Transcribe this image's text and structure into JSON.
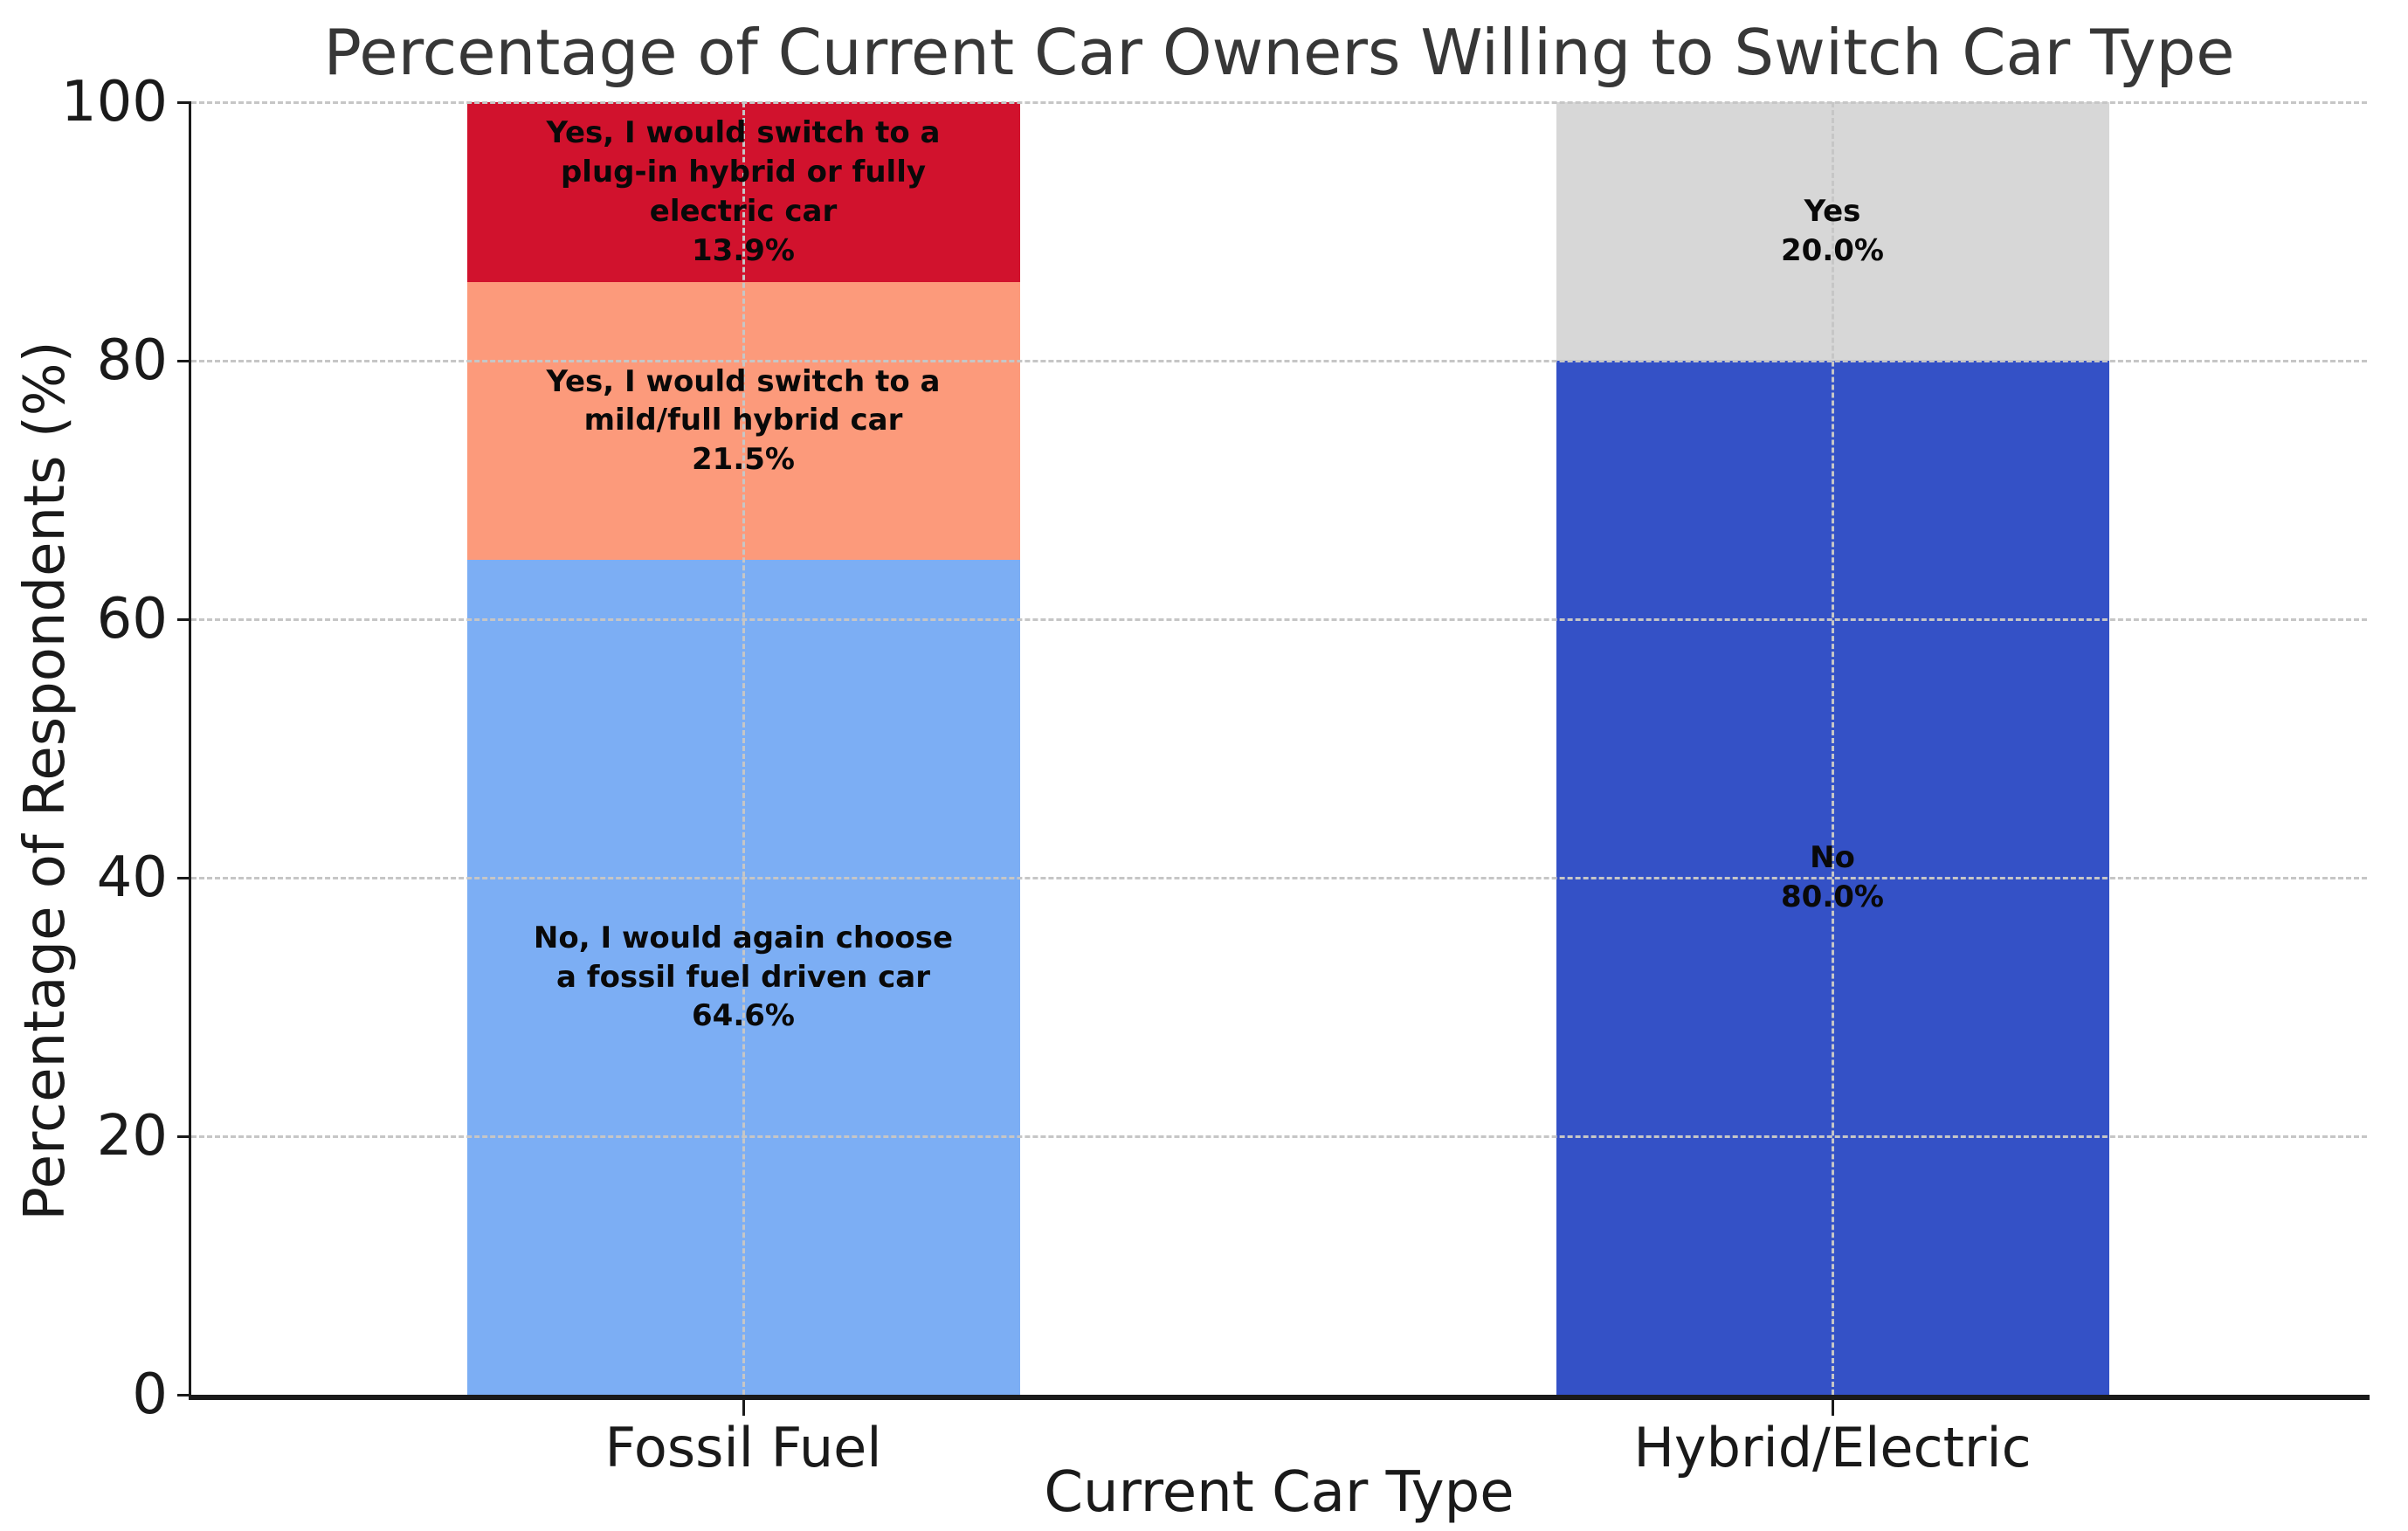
{
  "chart_data": {
    "type": "bar",
    "stacked": true,
    "title": "Percentage of Current Car Owners Willing to Switch Car Type",
    "xlabel": "Current Car Type",
    "ylabel": "Percentage of Respondents (%)",
    "categories": [
      "Fossil Fuel",
      "Hybrid/Electric"
    ],
    "ylim": [
      0,
      100
    ],
    "yticks": [
      0,
      20,
      40,
      60,
      80,
      100
    ],
    "grid": true,
    "grid_style": "dashed",
    "legend": "none",
    "colors": {
      "no_fossil": "#7CAEF4",
      "yes_mild_full_hybrid": "#FC9A7B",
      "yes_plugin_electric": "#D1122D",
      "no_hybrid_electric": "#3451C6",
      "yes_hybrid_electric": "#D7D7D7",
      "gridline": "#C6C6C6",
      "axis": "#1a1a1a",
      "title_text": "#373737"
    },
    "bars": [
      {
        "category": "Fossil Fuel",
        "segments": [
          {
            "name": "no-fossil-again",
            "value": 64.6,
            "color": "#7CAEF4",
            "lines": [
              "No, I would again choose",
              "a fossil fuel driven car",
              "64.6%"
            ]
          },
          {
            "name": "yes-mild-full-hybrid",
            "value": 21.5,
            "color": "#FC9A7B",
            "lines": [
              "Yes, I would switch to a",
              "mild/full hybrid car",
              "21.5%"
            ]
          },
          {
            "name": "yes-plugin-or-electric",
            "value": 13.9,
            "color": "#D1122D",
            "lines": [
              "Yes, I would switch to a",
              "plug-in hybrid or fully",
              "electric car",
              "13.9%"
            ]
          }
        ]
      },
      {
        "category": "Hybrid/Electric",
        "segments": [
          {
            "name": "no-hybrid-electric",
            "value": 80.0,
            "color": "#3451C6",
            "lines": [
              "No",
              "80.0%"
            ]
          },
          {
            "name": "yes-hybrid-electric",
            "value": 20.0,
            "color": "#D7D7D7",
            "lines": [
              "Yes",
              "20.0%"
            ]
          }
        ]
      }
    ]
  }
}
